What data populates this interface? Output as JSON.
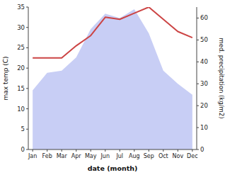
{
  "chart_data": {
    "type": "line",
    "xlabel": "date (month)",
    "ylabel": "max temp (C)",
    "y2label": "med. precipitation (kg/m2)",
    "categories": [
      "Jan",
      "Feb",
      "Mar",
      "Apr",
      "May",
      "Jun",
      "Jul",
      "Aug",
      "Sep",
      "Oct",
      "Nov",
      "Dec"
    ],
    "series": [
      {
        "type": "area",
        "axis": "y2",
        "color": "#c8cef5",
        "values": [
          27,
          35,
          36,
          42,
          55,
          62,
          60,
          64,
          53,
          36,
          30,
          25
        ]
      },
      {
        "type": "line",
        "color": "#cc4444",
        "values": [
          22.5,
          22.5,
          22.5,
          25.5,
          28.0,
          32.5,
          32.0,
          33.5,
          35.0,
          32.0,
          29.0,
          27.5
        ]
      }
    ],
    "ylim": [
      0,
      35
    ],
    "yticks": [
      0,
      5,
      10,
      15,
      20,
      25,
      30,
      35
    ],
    "y2lim": [
      0,
      65
    ],
    "y2ticks": [
      0,
      10,
      20,
      30,
      40,
      50,
      60
    ],
    "grid": false
  }
}
